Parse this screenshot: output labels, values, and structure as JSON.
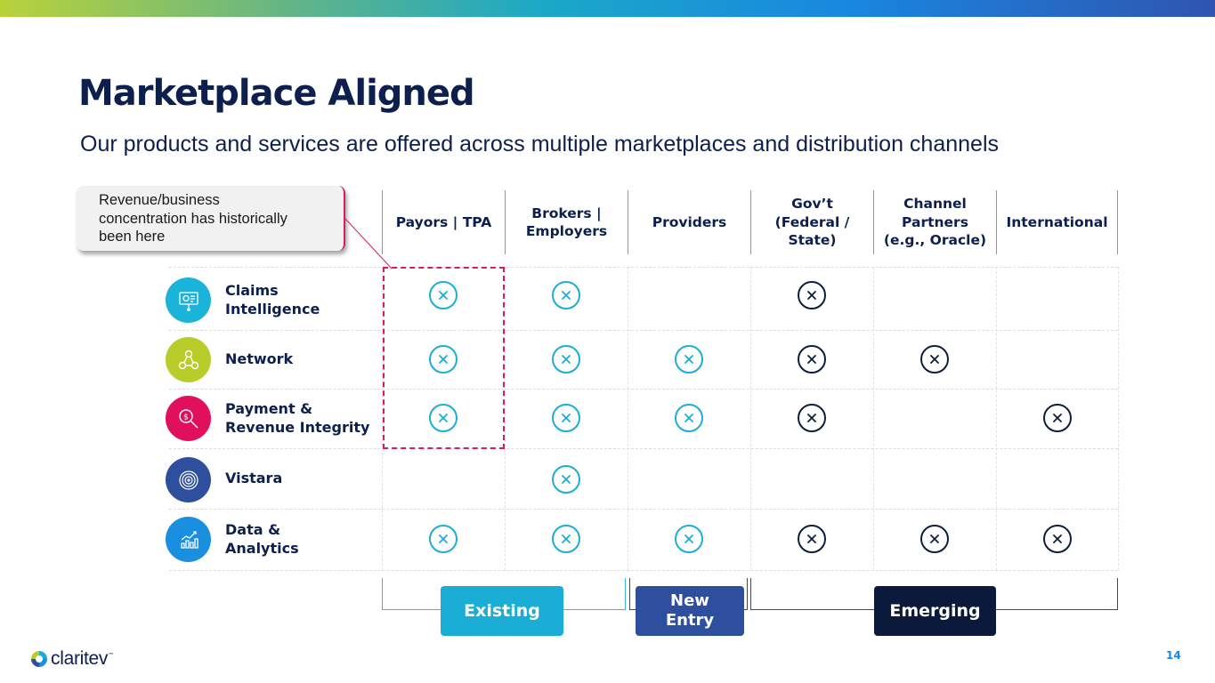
{
  "title": "Marketplace Aligned",
  "subtitle": "Our products and services are offered across multiple marketplaces and distribution channels",
  "callout": {
    "lines": [
      "Revenue/business",
      "concentration has historically",
      "been here"
    ]
  },
  "columns": [
    {
      "lines": [
        "Payors | TPA"
      ]
    },
    {
      "lines": [
        "Brokers |",
        "Employers"
      ]
    },
    {
      "lines": [
        "Providers"
      ]
    },
    {
      "lines": [
        "Gov’t",
        "(Federal /",
        "State)"
      ]
    },
    {
      "lines": [
        "Channel",
        "Partners",
        "(e.g., Oracle)"
      ]
    },
    {
      "lines": [
        "International"
      ]
    }
  ],
  "rows": [
    {
      "icon": "presentation-board-icon",
      "color": "#1ab3d9",
      "lines": [
        "Claims",
        "Intelligence"
      ],
      "marks": [
        1,
        1,
        0,
        1,
        0,
        0
      ]
    },
    {
      "icon": "network-nodes-icon",
      "color": "#b8cc2a",
      "lines": [
        "Network"
      ],
      "marks": [
        1,
        1,
        1,
        1,
        1,
        0
      ]
    },
    {
      "icon": "dollar-search-icon",
      "color": "#e0105c",
      "lines": [
        "Payment &",
        "Revenue Integrity"
      ],
      "marks": [
        1,
        1,
        1,
        1,
        0,
        1
      ]
    },
    {
      "icon": "target-plus-icon",
      "color": "#2e4f9e",
      "lines": [
        "Vistara"
      ],
      "marks": [
        0,
        1,
        0,
        0,
        0,
        0
      ]
    },
    {
      "icon": "bar-chart-icon",
      "color": "#1a8fe0",
      "lines": [
        "Data &",
        "Analytics"
      ],
      "marks": [
        1,
        1,
        1,
        1,
        1,
        1
      ]
    }
  ],
  "categories": {
    "existing": {
      "label": "Existing",
      "color": "#1aaed6"
    },
    "new_entry": {
      "lines": [
        "New",
        "Entry"
      ],
      "color": "#2e4f9e"
    },
    "emerging": {
      "label": "Emerging",
      "color": "#0b1a3a"
    }
  },
  "logo": {
    "text": "claritev",
    "tm": "™"
  },
  "page_number": "14"
}
